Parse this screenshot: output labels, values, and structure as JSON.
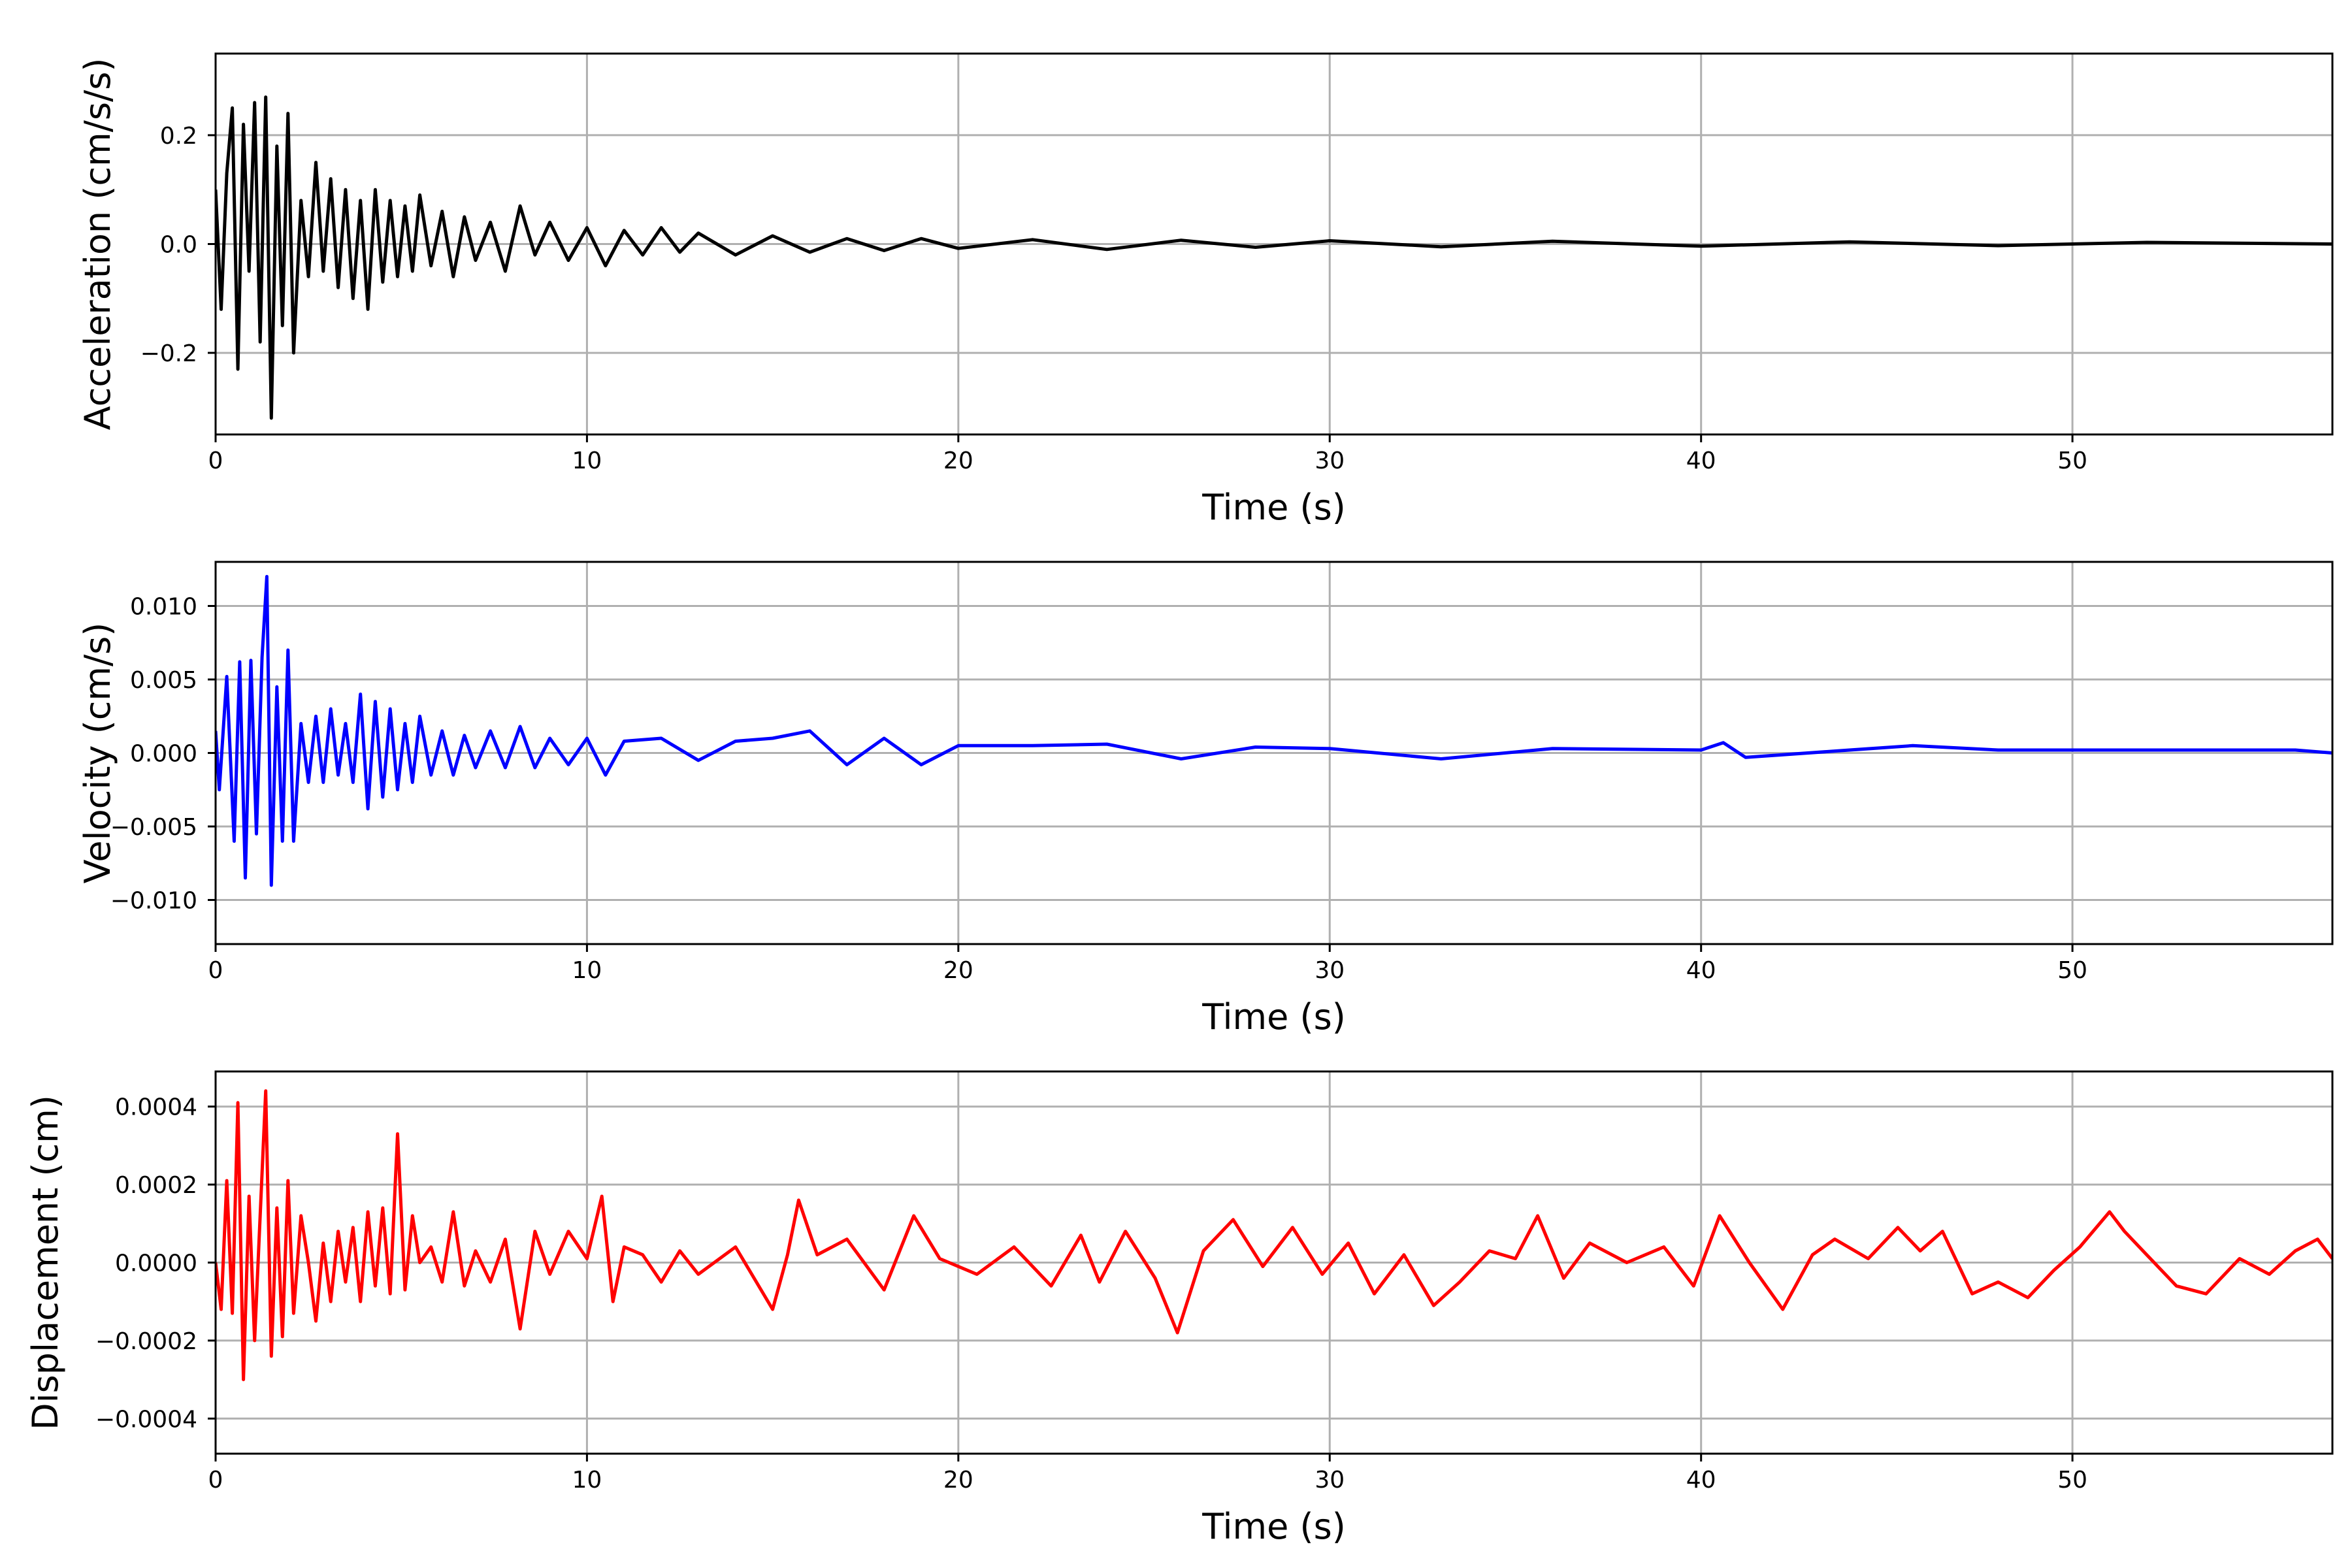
{
  "chart_data": [
    {
      "type": "line",
      "xlabel": "Time (s)",
      "ylabel": "Acceleration (cm/s/s)",
      "xlim": [
        0,
        57
      ],
      "ylim": [
        -0.35,
        0.35
      ],
      "xticks": [
        0,
        10,
        20,
        30,
        40,
        50
      ],
      "xtick_labels": [
        "0",
        "10",
        "20",
        "30",
        "40",
        "50"
      ],
      "yticks": [
        -0.2,
        0.0,
        0.2
      ],
      "ytick_labels": [
        "−0.2",
        "0.0",
        "0.2"
      ],
      "grid": true,
      "legend": "none",
      "color": "#000000",
      "series": [
        {
          "x": [
            0,
            0.15,
            0.3,
            0.45,
            0.6,
            0.75,
            0.9,
            1.05,
            1.2,
            1.35,
            1.5,
            1.65,
            1.8,
            1.95,
            2.1,
            2.3,
            2.5,
            2.7,
            2.9,
            3.1,
            3.3,
            3.5,
            3.7,
            3.9,
            4.1,
            4.3,
            4.5,
            4.7,
            4.9,
            5.1,
            5.3,
            5.5,
            5.8,
            6.1,
            6.4,
            6.7,
            7.0,
            7.4,
            7.8,
            8.2,
            8.6,
            9.0,
            9.5,
            10.0,
            10.5,
            11.0,
            11.5,
            12.0,
            12.5,
            13.0,
            14.0,
            15.0,
            16.0,
            17.0,
            18.0,
            19.0,
            20.0,
            22.0,
            24.0,
            26.0,
            28.0,
            30.0,
            33.0,
            36.0,
            40.0,
            44.0,
            48.0,
            52.0,
            57.0
          ],
          "y": [
            0.1,
            -0.12,
            0.13,
            0.25,
            -0.23,
            0.22,
            -0.05,
            0.26,
            -0.18,
            0.27,
            -0.32,
            0.18,
            -0.15,
            0.24,
            -0.2,
            0.08,
            -0.06,
            0.15,
            -0.05,
            0.12,
            -0.08,
            0.1,
            -0.1,
            0.08,
            -0.12,
            0.1,
            -0.07,
            0.08,
            -0.06,
            0.07,
            -0.05,
            0.09,
            -0.04,
            0.06,
            -0.06,
            0.05,
            -0.03,
            0.04,
            -0.05,
            0.07,
            -0.02,
            0.04,
            -0.03,
            0.03,
            -0.04,
            0.025,
            -0.02,
            0.03,
            -0.015,
            0.02,
            -0.02,
            0.015,
            -0.015,
            0.01,
            -0.012,
            0.01,
            -0.008,
            0.008,
            -0.01,
            0.007,
            -0.006,
            0.006,
            -0.005,
            0.005,
            -0.004,
            0.004,
            -0.003,
            0.003,
            0.0
          ]
        }
      ]
    },
    {
      "type": "line",
      "xlabel": "Time (s)",
      "ylabel": "Velocity (cm/s)",
      "xlim": [
        0,
        57
      ],
      "ylim": [
        -0.013,
        0.013
      ],
      "xticks": [
        0,
        10,
        20,
        30,
        40,
        50
      ],
      "xtick_labels": [
        "0",
        "10",
        "20",
        "30",
        "40",
        "50"
      ],
      "yticks": [
        -0.01,
        -0.005,
        0.0,
        0.005,
        0.01
      ],
      "ytick_labels": [
        "−0.010",
        "−0.005",
        "0.000",
        "0.005",
        "0.010"
      ],
      "grid": true,
      "legend": "none",
      "color": "#0000ff",
      "series": [
        {
          "x": [
            0,
            0.1,
            0.3,
            0.5,
            0.65,
            0.8,
            0.95,
            1.1,
            1.25,
            1.38,
            1.5,
            1.65,
            1.8,
            1.95,
            2.1,
            2.3,
            2.5,
            2.7,
            2.9,
            3.1,
            3.3,
            3.5,
            3.7,
            3.9,
            4.1,
            4.3,
            4.5,
            4.7,
            4.9,
            5.1,
            5.3,
            5.5,
            5.8,
            6.1,
            6.4,
            6.7,
            7.0,
            7.4,
            7.8,
            8.2,
            8.6,
            9.0,
            9.5,
            10.0,
            10.5,
            11.0,
            12.0,
            13.0,
            14.0,
            15.0,
            16.0,
            17.0,
            18.0,
            19.0,
            20.0,
            22.0,
            24.0,
            26.0,
            28.0,
            30.0,
            33.0,
            36.0,
            40.0,
            40.6,
            41.2,
            44.0,
            45.7,
            48.0,
            52.0,
            56.0,
            57.0
          ],
          "y": [
            0.0015,
            -0.0025,
            0.0052,
            -0.006,
            0.0062,
            -0.0085,
            0.0063,
            -0.0055,
            0.0065,
            0.012,
            -0.009,
            0.0045,
            -0.006,
            0.007,
            -0.006,
            0.002,
            -0.002,
            0.0025,
            -0.002,
            0.003,
            -0.0015,
            0.002,
            -0.002,
            0.004,
            -0.0038,
            0.0035,
            -0.003,
            0.003,
            -0.0025,
            0.002,
            -0.002,
            0.0025,
            -0.0015,
            0.0015,
            -0.0015,
            0.0012,
            -0.001,
            0.0015,
            -0.001,
            0.0018,
            -0.001,
            0.001,
            -0.0008,
            0.001,
            -0.0015,
            0.0008,
            0.001,
            -0.0005,
            0.0008,
            0.001,
            0.0015,
            -0.0008,
            0.001,
            -0.0008,
            0.0005,
            0.0005,
            0.0006,
            -0.0004,
            0.0004,
            0.0003,
            -0.0004,
            0.0003,
            0.0002,
            0.0007,
            -0.0003,
            0.0002,
            0.0005,
            0.0002,
            0.0002,
            0.0002,
            0.0
          ]
        }
      ]
    },
    {
      "type": "line",
      "xlabel": "Time (s)",
      "ylabel": "Displacement (cm)",
      "xlim": [
        0,
        57
      ],
      "ylim": [
        -0.00049,
        0.00049
      ],
      "xticks": [
        0,
        10,
        20,
        30,
        40,
        50
      ],
      "xtick_labels": [
        "0",
        "10",
        "20",
        "30",
        "40",
        "50"
      ],
      "yticks": [
        -0.0004,
        -0.0002,
        0.0,
        0.0002,
        0.0004
      ],
      "ytick_labels": [
        "−0.0004",
        "−0.0002",
        "0.0000",
        "0.0002",
        "0.0004"
      ],
      "grid": true,
      "legend": "none",
      "color": "#ff0000",
      "series": [
        {
          "x": [
            0,
            0.15,
            0.3,
            0.45,
            0.6,
            0.75,
            0.9,
            1.05,
            1.2,
            1.35,
            1.5,
            1.65,
            1.8,
            1.95,
            2.1,
            2.3,
            2.5,
            2.7,
            2.9,
            3.1,
            3.3,
            3.5,
            3.7,
            3.9,
            4.1,
            4.3,
            4.5,
            4.7,
            4.9,
            5.1,
            5.3,
            5.5,
            5.8,
            6.1,
            6.4,
            6.7,
            7.0,
            7.4,
            7.8,
            8.2,
            8.6,
            9.0,
            9.5,
            10.0,
            10.4,
            10.7,
            11.0,
            11.5,
            12.0,
            12.5,
            13.0,
            14.0,
            15.0,
            15.4,
            15.7,
            16.2,
            17.0,
            18.0,
            18.8,
            19.5,
            20.5,
            21.5,
            22.5,
            23.3,
            23.8,
            24.5,
            25.3,
            25.9,
            26.6,
            27.4,
            28.2,
            29.0,
            29.8,
            30.5,
            31.2,
            32.0,
            32.8,
            33.5,
            34.3,
            35.0,
            35.6,
            36.3,
            37.0,
            38.0,
            39.0,
            39.8,
            40.5,
            41.3,
            42.2,
            43.0,
            43.6,
            44.5,
            45.3,
            45.9,
            46.5,
            47.3,
            48.0,
            48.8,
            49.5,
            50.2,
            51.0,
            51.4,
            52.0,
            52.8,
            53.6,
            54.5,
            55.3,
            56.0,
            56.6,
            57.0
          ],
          "y": [
            0.0,
            -0.00012,
            0.00021,
            -0.00013,
            0.00041,
            -0.0003,
            0.00017,
            -0.0002,
            0.00012,
            0.00044,
            -0.00024,
            0.00014,
            -0.00019,
            0.00021,
            -0.00013,
            0.00012,
            0.0,
            -0.00015,
            5e-05,
            -0.0001,
            8e-05,
            -5e-05,
            9e-05,
            -0.0001,
            0.00013,
            -6e-05,
            0.00014,
            -8e-05,
            0.00033,
            -7e-05,
            0.00012,
            0.0,
            4e-05,
            -5e-05,
            0.00013,
            -6e-05,
            3e-05,
            -5e-05,
            6e-05,
            -0.00017,
            8e-05,
            -3e-05,
            8e-05,
            1e-05,
            0.00017,
            -0.0001,
            4e-05,
            2e-05,
            -5e-05,
            3e-05,
            -3e-05,
            4e-05,
            -0.00012,
            2e-05,
            0.00016,
            2e-05,
            6e-05,
            -7e-05,
            0.00012,
            1e-05,
            -3e-05,
            4e-05,
            -6e-05,
            7e-05,
            -5e-05,
            8e-05,
            -4e-05,
            -0.00018,
            3e-05,
            0.00011,
            -1e-05,
            9e-05,
            -3e-05,
            5e-05,
            -8e-05,
            2e-05,
            -0.00011,
            -5e-05,
            3e-05,
            1e-05,
            0.00012,
            -4e-05,
            5e-05,
            0.0,
            4e-05,
            -6e-05,
            0.00012,
            0.0,
            -0.00012,
            2e-05,
            6e-05,
            1e-05,
            9e-05,
            3e-05,
            8e-05,
            -8e-05,
            -5e-05,
            -9e-05,
            -2e-05,
            4e-05,
            0.00013,
            8e-05,
            2e-05,
            -6e-05,
            -8e-05,
            1e-05,
            -3e-05,
            3e-05,
            6e-05,
            1e-05
          ]
        }
      ]
    }
  ]
}
